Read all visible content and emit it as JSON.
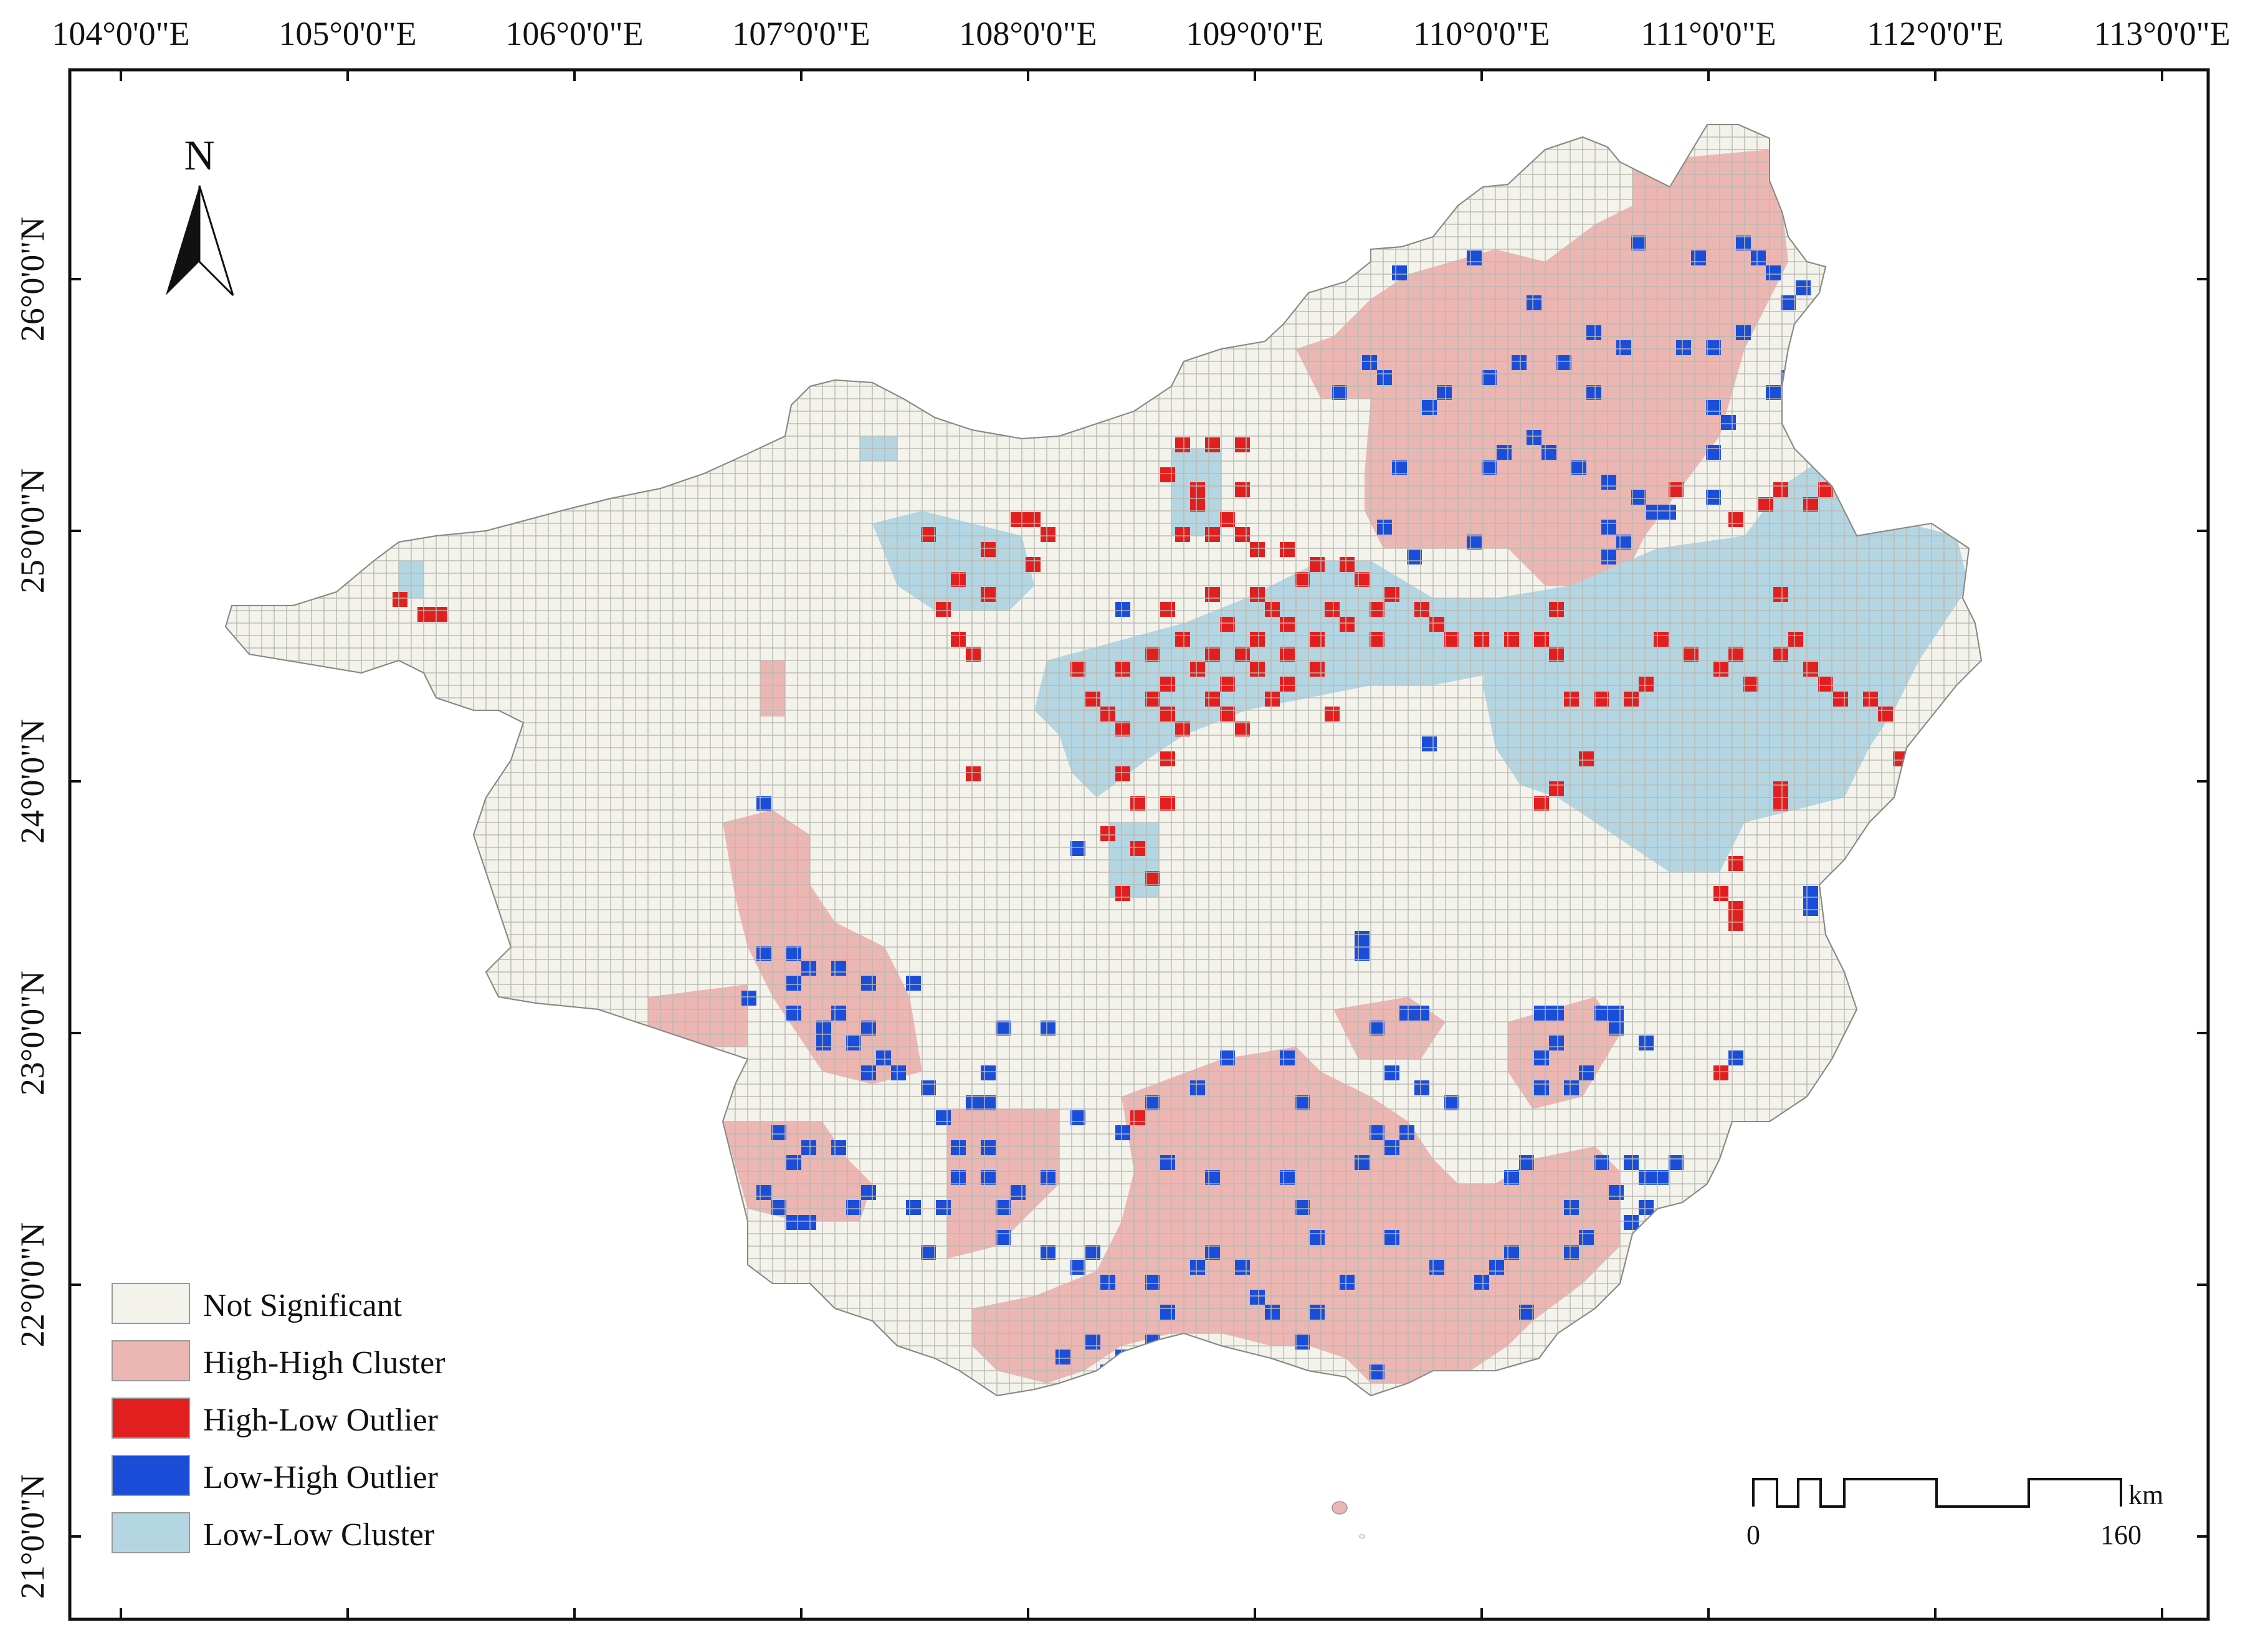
{
  "map": {
    "x_ticks": [
      "104°0'0\"E",
      "105°0'0\"E",
      "106°0'0\"E",
      "107°0'0\"E",
      "108°0'0\"E",
      "109°0'0\"E",
      "110°0'0\"E",
      "111°0'0\"E",
      "112°0'0\"E",
      "113°0'0\"E"
    ],
    "y_ticks": [
      "26°0'0\"N",
      "25°0'0\"N",
      "24°0'0\"N",
      "23°0'0\"N",
      "22°0'0\"N",
      "21°0'0\"N"
    ],
    "north_label": "N",
    "legend": [
      {
        "label": "Not Significant",
        "color": "#f3f3ec"
      },
      {
        "label": "High-High Cluster",
        "color": "#ecb6b2"
      },
      {
        "label": "High-Low Outlier",
        "color": "#e21f1f"
      },
      {
        "label": "Low-High Outlier",
        "color": "#1b4ed8"
      },
      {
        "label": "Low-Low Cluster",
        "color": "#b4d6e3"
      }
    ],
    "scale": {
      "start": "0",
      "end": "160",
      "unit": "km"
    },
    "grid_color": "#b9b9b2"
  }
}
